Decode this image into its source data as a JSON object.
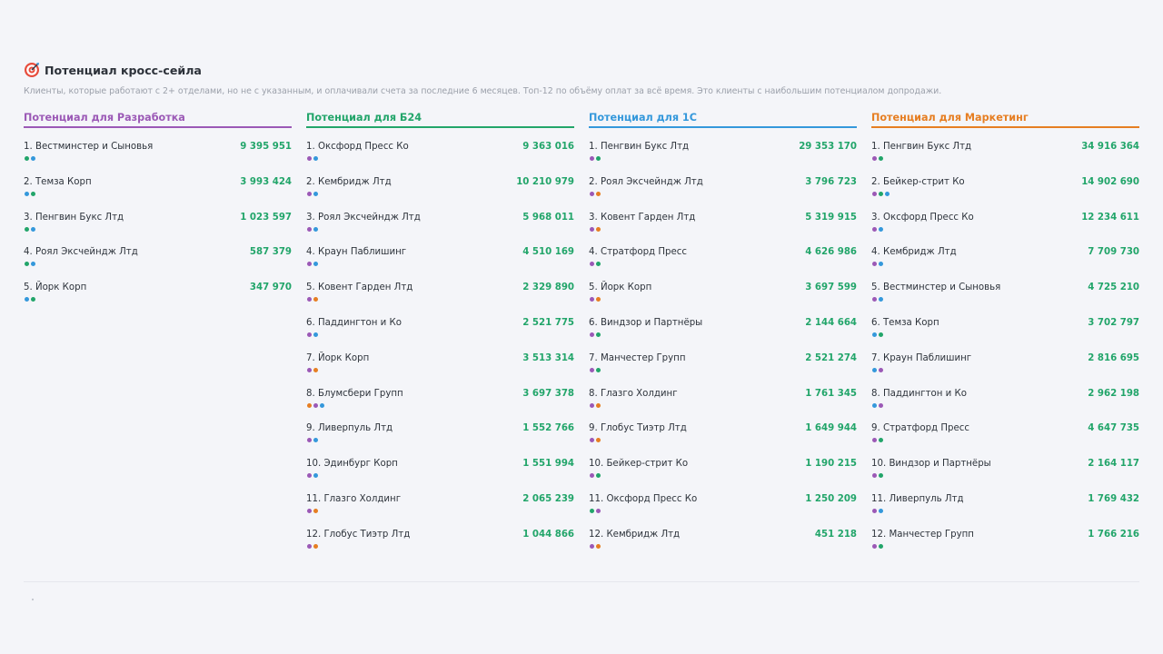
{
  "header": {
    "title": "Потенциал кросс-сейла",
    "subtitle": "Клиенты, которые работают с 2+ отделами, но не с указанным, и оплачивали счета за последние 6 месяцев. Топ-12 по объёму оплат за всё время. Это клиенты с наибольшим потенциалом допродажи.",
    "icon": "target-icon"
  },
  "dot_colors": {
    "purple": "#9b59b6",
    "green": "#22a56a",
    "blue": "#3498db",
    "orange": "#e67e22",
    "teal": "#16a085"
  },
  "columns": [
    {
      "title": "Потенциал для Разработка",
      "color": "#9b59b6",
      "rows": [
        {
          "name": "1. Вестминстер и Сыновья",
          "value": "9 395 951",
          "dots": [
            "#22a56a",
            "#3498db"
          ]
        },
        {
          "name": "2. Темза Корп",
          "value": "3 993 424",
          "dots": [
            "#3498db",
            "#22a56a"
          ]
        },
        {
          "name": "3. Пенгвин Букс Лтд",
          "value": "1 023 597",
          "dots": [
            "#22a56a",
            "#3498db"
          ]
        },
        {
          "name": "4. Роял Эксчейндж Лтд",
          "value": "587 379",
          "dots": [
            "#22a56a",
            "#3498db"
          ]
        },
        {
          "name": "5. Йорк Корп",
          "value": "347 970",
          "dots": [
            "#3498db",
            "#22a56a"
          ]
        }
      ]
    },
    {
      "title": "Потенциал для Б24",
      "color": "#22a56a",
      "rows": [
        {
          "name": "1. Оксфорд Пресс Ко",
          "value": "9 363 016",
          "dots": [
            "#9b59b6",
            "#3498db"
          ]
        },
        {
          "name": "2. Кембридж Лтд",
          "value": "10 210 979",
          "dots": [
            "#9b59b6",
            "#3498db"
          ]
        },
        {
          "name": "3. Роял Эксчейндж Лтд",
          "value": "5 968 011",
          "dots": [
            "#9b59b6",
            "#3498db"
          ]
        },
        {
          "name": "4. Краун Паблишинг",
          "value": "4 510 169",
          "dots": [
            "#9b59b6",
            "#3498db"
          ]
        },
        {
          "name": "5. Ковент Гарден Лтд",
          "value": "2 329 890",
          "dots": [
            "#9b59b6",
            "#e67e22"
          ]
        },
        {
          "name": "6. Паддингтон и Ко",
          "value": "2 521 775",
          "dots": [
            "#9b59b6",
            "#3498db"
          ]
        },
        {
          "name": "7. Йорк Корп",
          "value": "3 513 314",
          "dots": [
            "#9b59b6",
            "#e67e22"
          ]
        },
        {
          "name": "8. Блумсбери Групп",
          "value": "3 697 378",
          "dots": [
            "#e67e22",
            "#9b59b6",
            "#3498db"
          ]
        },
        {
          "name": "9. Ливерпуль Лтд",
          "value": "1 552 766",
          "dots": [
            "#9b59b6",
            "#3498db"
          ]
        },
        {
          "name": "10. Эдинбург Корп",
          "value": "1 551 994",
          "dots": [
            "#9b59b6",
            "#3498db"
          ]
        },
        {
          "name": "11. Глазго Холдинг",
          "value": "2 065 239",
          "dots": [
            "#9b59b6",
            "#e67e22"
          ]
        },
        {
          "name": "12. Глобус Тиэтр Лтд",
          "value": "1 044 866",
          "dots": [
            "#9b59b6",
            "#e67e22"
          ]
        }
      ]
    },
    {
      "title": "Потенциал для 1С",
      "color": "#3498db",
      "rows": [
        {
          "name": "1. Пенгвин Букс Лтд",
          "value": "29 353 170",
          "dots": [
            "#9b59b6",
            "#22a56a"
          ]
        },
        {
          "name": "2. Роял Эксчейндж Лтд",
          "value": "3 796 723",
          "dots": [
            "#9b59b6",
            "#e67e22"
          ]
        },
        {
          "name": "3. Ковент Гарден Лтд",
          "value": "5 319 915",
          "dots": [
            "#9b59b6",
            "#e67e22"
          ]
        },
        {
          "name": "4. Стратфорд Пресс",
          "value": "4 626 986",
          "dots": [
            "#9b59b6",
            "#22a56a"
          ]
        },
        {
          "name": "5. Йорк Корп",
          "value": "3 697 599",
          "dots": [
            "#9b59b6",
            "#e67e22"
          ]
        },
        {
          "name": "6. Виндзор и Партнёры",
          "value": "2 144 664",
          "dots": [
            "#9b59b6",
            "#22a56a"
          ]
        },
        {
          "name": "7. Манчестер Групп",
          "value": "2 521 274",
          "dots": [
            "#9b59b6",
            "#22a56a"
          ]
        },
        {
          "name": "8. Глазго Холдинг",
          "value": "1 761 345",
          "dots": [
            "#9b59b6",
            "#e67e22"
          ]
        },
        {
          "name": "9. Глобус Тиэтр Лтд",
          "value": "1 649 944",
          "dots": [
            "#9b59b6",
            "#e67e22"
          ]
        },
        {
          "name": "10. Бейкер-стрит Ко",
          "value": "1 190 215",
          "dots": [
            "#9b59b6",
            "#22a56a"
          ]
        },
        {
          "name": "11. Оксфорд Пресс Ко",
          "value": "1 250 209",
          "dots": [
            "#22a56a",
            "#9b59b6"
          ]
        },
        {
          "name": "12. Кембридж Лтд",
          "value": "451 218",
          "dots": [
            "#9b59b6",
            "#e67e22"
          ]
        }
      ]
    },
    {
      "title": "Потенциал для Маркетинг",
      "color": "#e67e22",
      "rows": [
        {
          "name": "1. Пенгвин Букс Лтд",
          "value": "34 916 364",
          "dots": [
            "#9b59b6",
            "#22a56a"
          ]
        },
        {
          "name": "2. Бейкер-стрит Ко",
          "value": "14 902 690",
          "dots": [
            "#9b59b6",
            "#22a56a",
            "#3498db"
          ]
        },
        {
          "name": "3. Оксфорд Пресс Ко",
          "value": "12 234 611",
          "dots": [
            "#9b59b6",
            "#3498db"
          ]
        },
        {
          "name": "4. Кембридж Лтд",
          "value": "7 709 730",
          "dots": [
            "#9b59b6",
            "#3498db"
          ]
        },
        {
          "name": "5. Вестминстер и Сыновья",
          "value": "4 725 210",
          "dots": [
            "#9b59b6",
            "#3498db"
          ]
        },
        {
          "name": "6. Темза Корп",
          "value": "3 702 797",
          "dots": [
            "#3498db",
            "#22a56a"
          ]
        },
        {
          "name": "7. Краун Паблишинг",
          "value": "2 816 695",
          "dots": [
            "#3498db",
            "#9b59b6"
          ]
        },
        {
          "name": "8. Паддингтон и Ко",
          "value": "2 962 198",
          "dots": [
            "#3498db",
            "#9b59b6"
          ]
        },
        {
          "name": "9. Стратфорд Пресс",
          "value": "4 647 735",
          "dots": [
            "#9b59b6",
            "#22a56a"
          ]
        },
        {
          "name": "10. Виндзор и Партнёры",
          "value": "2 164 117",
          "dots": [
            "#9b59b6",
            "#22a56a"
          ]
        },
        {
          "name": "11. Ливерпуль Лтд",
          "value": "1 769 432",
          "dots": [
            "#9b59b6",
            "#3498db"
          ]
        },
        {
          "name": "12. Манчестер Групп",
          "value": "1 766 216",
          "dots": [
            "#9b59b6",
            "#22a56a"
          ]
        }
      ]
    }
  ]
}
